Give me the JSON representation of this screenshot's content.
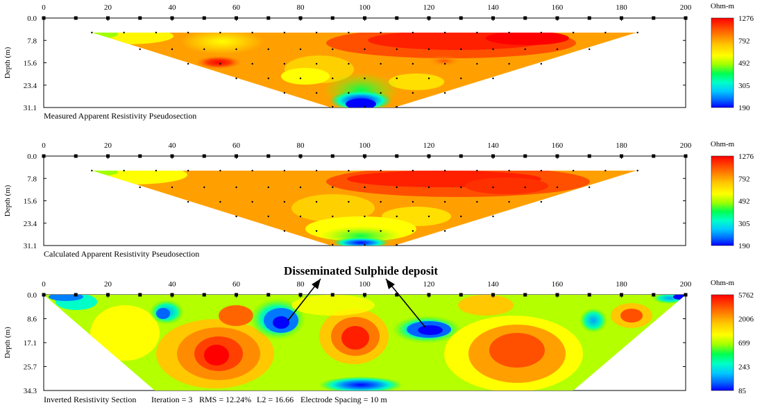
{
  "panels": [
    {
      "caption": "Measured Apparent Resistivity Pseudosection",
      "x_ticks": [
        "0",
        "20",
        "40",
        "60",
        "80",
        "100",
        "120",
        "140",
        "160",
        "180",
        "200"
      ],
      "depth_label": "Depth (m)",
      "depth_ticks": [
        "0.0",
        "7.8",
        "15.6",
        "23.4",
        "31.1"
      ],
      "colorbar": {
        "unit": "Ohm-m",
        "labels": [
          "1276",
          "792",
          "492",
          "305",
          "190"
        ]
      }
    },
    {
      "caption": "Calculated Apparent Resistivity Pseudosection",
      "x_ticks": [
        "0",
        "20",
        "40",
        "60",
        "80",
        "100",
        "120",
        "140",
        "160",
        "180",
        "200"
      ],
      "depth_label": "Depth (m)",
      "depth_ticks": [
        "0.0",
        "7.8",
        "15.6",
        "23.4",
        "31.1"
      ],
      "colorbar": {
        "unit": "Ohm-m",
        "labels": [
          "1276",
          "792",
          "492",
          "305",
          "190"
        ]
      }
    },
    {
      "caption": "Inverted Resistivity Section",
      "info": [
        "Iteration = 3",
        "RMS = 12.24%",
        "L2 = 16.66",
        "Electrode Spacing = 10 m"
      ],
      "x_ticks": [
        "0",
        "20",
        "40",
        "60",
        "80",
        "100",
        "120",
        "140",
        "160",
        "180",
        "200"
      ],
      "depth_label": "Depth (m)",
      "depth_ticks": [
        "0.0",
        "8.6",
        "17.1",
        "25.7",
        "34.3"
      ],
      "colorbar": {
        "unit": "Ohm-m",
        "labels": [
          "5762",
          "2006",
          "699",
          "243",
          "85"
        ]
      }
    }
  ],
  "annotation": "Disseminated  Sulphide  deposit",
  "colors": {
    "scale": [
      "#0000ff",
      "#0064ff",
      "#00c8ff",
      "#00ffb4",
      "#00ff50",
      "#5aff00",
      "#b4ff00",
      "#ffff00",
      "#ffc800",
      "#ff9600",
      "#ff6400",
      "#ff2800",
      "#ff0000"
    ]
  }
}
